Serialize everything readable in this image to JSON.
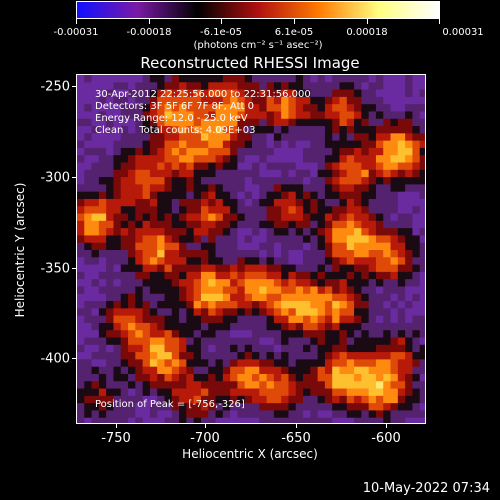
{
  "colorbar": {
    "ticks": [
      "-0.00031",
      "-0.00018",
      "-6.1e-05",
      "6.1e-05",
      "0.00018",
      "0.00031"
    ],
    "unit": "(photons cm⁻² s⁻¹ asec⁻²)",
    "colors": [
      "#1010ff",
      "#7a1aa6",
      "#000000",
      "#b01010",
      "#ff7a00",
      "#ffff80",
      "#ffffff"
    ]
  },
  "title": "Reconstructed RHESSI Image",
  "annotations": {
    "time_range": "30-Apr-2012 22:25:56.000 to 22:31:56.000",
    "detectors": "Detectors: 3F 5F 6F 7F 8F, Att 0",
    "energy": "Energy Range: 12.0 - 25.0 keV",
    "clean": "Clean     Total counts: 4.09E+03",
    "peak": "Position of Peak = [-756,-326]"
  },
  "axes": {
    "x_title": "Heliocentric X (arcsec)",
    "y_title": "Heliocentric Y (arcsec)",
    "x_ticks": [
      "-750",
      "-700",
      "-650",
      "-600"
    ],
    "y_ticks": [
      "-250",
      "-300",
      "-350",
      "-400"
    ],
    "x_range": [
      -772,
      -573
    ],
    "y_range": [
      -436,
      -237
    ]
  },
  "footer": {
    "timestamp": "10-May-2022 07:34"
  }
}
